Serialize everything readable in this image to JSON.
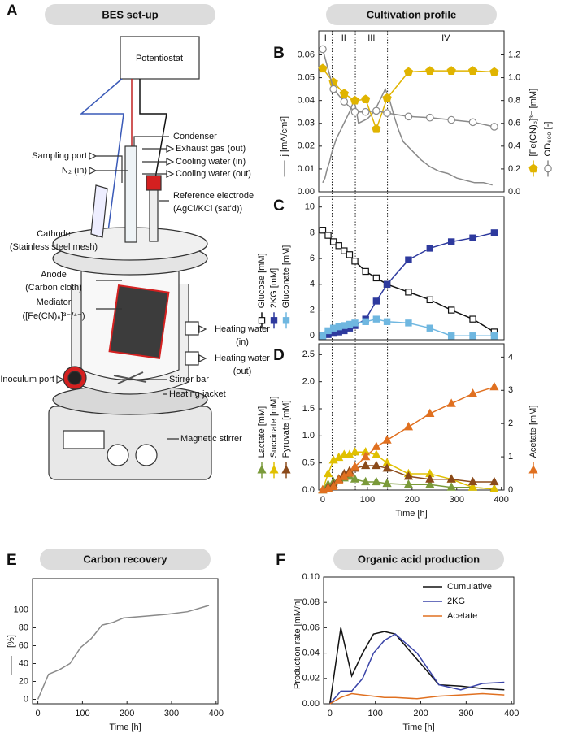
{
  "diagram": {
    "panel": "A",
    "title": "BES set-up",
    "potentiostat": "Potentiostat",
    "labels": [
      [
        "Condenser"
      ],
      [
        "Exhaust gas (out)"
      ],
      [
        "Cooling water (in)"
      ],
      [
        "Cooling water (out)"
      ],
      [
        "Sampling port"
      ],
      [
        "N₂ (in)"
      ],
      [
        "Reference electrode",
        "(AgCl/KCl (sat'd))"
      ],
      [
        "Cathode",
        "(Stainless steel mesh)"
      ],
      [
        "Anode",
        "(Carbon cloth)"
      ],
      [
        "Mediator",
        "([Fe(CN)₆]³⁻/⁴⁻)"
      ],
      [
        "Heating water",
        "(in)"
      ],
      [
        "Heating water",
        "(out)"
      ],
      [
        "Inoculum port"
      ],
      [
        "Stirrer bar"
      ],
      [
        "Heating jacket"
      ],
      [
        "Magnetic stirrer"
      ]
    ]
  },
  "chart_data": [
    {
      "type": "line",
      "panel": "B",
      "title": "Cultivation profile",
      "xlim": [
        -9,
        406
      ],
      "ylim": [
        0,
        0.0705
      ],
      "y2lim": [
        0,
        1.41
      ],
      "yticks": [
        {
          "value": 0,
          "label": "0.00"
        },
        0.01,
        0.02,
        0.03,
        0.04,
        0.05,
        0.06
      ],
      "y2ticks": [
        {
          "value": 0,
          "label": "0.0"
        },
        0.2,
        0.4,
        0.6,
        0.8,
        {
          "value": 1,
          "label": "1.0"
        },
        1.2
      ],
      "phase_labels": [
        "I",
        "II",
        "III",
        "IV"
      ],
      "phase_boundaries": [
        21,
        73,
        145
      ],
      "series": [
        {
          "name": "j [mA/cm²]",
          "color": "#8a8a8a",
          "x": [
            0,
            5,
            10,
            15,
            20,
            25,
            30,
            40,
            50,
            60,
            70,
            75,
            80,
            90,
            100,
            110,
            120,
            130,
            140,
            150,
            160,
            170,
            180,
            200,
            220,
            240,
            260,
            280,
            300,
            320,
            340,
            360,
            380
          ],
          "values": [
            0.004,
            0.006,
            0.01,
            0.013,
            0.017,
            0.02,
            0.023,
            0.027,
            0.031,
            0.035,
            0.04,
            0.036,
            0.03,
            0.031,
            0.032,
            0.034,
            0.037,
            0.041,
            0.045,
            0.04,
            0.033,
            0.027,
            0.022,
            0.018,
            0.014,
            0.011,
            0.009,
            0.008,
            0.006,
            0.005,
            0.004,
            0.004,
            0.003
          ]
        },
        {
          "name": "[Fe(CN)₆]³⁻ [mM]",
          "color": "#e0b400",
          "marker": "pentagon",
          "axis": "y2",
          "x": [
            0,
            24,
            48,
            72,
            96,
            120,
            144,
            192,
            240,
            288,
            336,
            384
          ],
          "values": [
            1.08,
            0.96,
            0.86,
            0.8,
            0.81,
            0.55,
            0.82,
            1.05,
            1.06,
            1.06,
            1.06,
            1.05
          ]
        },
        {
          "name": "OD₆₀₀ [-]",
          "color": "#8a8a8a",
          "marker": "circle",
          "marker_fill": "#ffffff",
          "axis": "y2",
          "x": [
            0,
            24,
            48,
            72,
            96,
            120,
            144,
            192,
            240,
            288,
            336,
            384
          ],
          "values": [
            1.25,
            0.9,
            0.79,
            0.7,
            0.7,
            0.71,
            0.69,
            0.66,
            0.65,
            0.63,
            0.61,
            0.57
          ]
        }
      ]
    },
    {
      "type": "line",
      "panel": "C",
      "xlim": [
        -9,
        406
      ],
      "ylim": [
        -0.3,
        10.8
      ],
      "yticks": [
        0,
        2,
        4,
        6,
        8,
        10
      ],
      "series": [
        {
          "name": "Glucose [mM]",
          "color": "#111111",
          "marker": "square",
          "marker_fill": "#ffffff",
          "x": [
            0,
            12,
            24,
            36,
            48,
            60,
            72,
            96,
            120,
            144,
            192,
            240,
            288,
            336,
            384
          ],
          "values": [
            8.2,
            7.8,
            7.3,
            7.0,
            6.6,
            6.3,
            5.8,
            5.0,
            4.5,
            4.0,
            3.4,
            2.8,
            2.0,
            1.3,
            0.3
          ]
        },
        {
          "name": "2KG [mM]",
          "color": "#2e3a9e",
          "marker": "square",
          "x": [
            0,
            12,
            24,
            36,
            48,
            60,
            72,
            96,
            120,
            144,
            192,
            240,
            288,
            336,
            384
          ],
          "values": [
            0,
            0.1,
            0.2,
            0.3,
            0.4,
            0.6,
            0.8,
            1.3,
            2.7,
            4.0,
            5.9,
            6.8,
            7.3,
            7.6,
            8.0
          ]
        },
        {
          "name": "Gluconate [mM]",
          "color": "#6fb7e0",
          "marker": "square",
          "x": [
            0,
            12,
            24,
            36,
            48,
            60,
            72,
            96,
            120,
            144,
            192,
            240,
            288,
            336,
            384
          ],
          "values": [
            0,
            0.4,
            0.6,
            0.7,
            0.8,
            0.9,
            1.0,
            1.1,
            1.3,
            1.1,
            1.0,
            0.6,
            0,
            0,
            0
          ]
        }
      ]
    },
    {
      "type": "line",
      "panel": "D",
      "xlim": [
        -9,
        406
      ],
      "ylim": [
        0,
        2.7
      ],
      "y2lim": [
        0,
        4.4
      ],
      "xlabel": "Time [h]",
      "xticks": [
        0,
        100,
        200,
        300,
        400
      ],
      "yticks": [
        {
          "value": 0,
          "label": "0.0"
        },
        0.5,
        {
          "value": 1,
          "label": "1.0"
        },
        1.5,
        {
          "value": 2,
          "label": "2.0"
        },
        2.5
      ],
      "y2ticks": [
        0,
        1,
        2,
        3,
        4
      ],
      "series": [
        {
          "name": "Lactate [mM]",
          "color": "#7a9a3a",
          "marker": "triangle",
          "x": [
            0,
            12,
            24,
            36,
            48,
            60,
            72,
            96,
            120,
            144,
            192,
            240,
            288,
            336,
            384
          ],
          "values": [
            0,
            0.1,
            0.15,
            0.2,
            0.22,
            0.25,
            0.2,
            0.15,
            0.15,
            0.12,
            0.1,
            0.1,
            0.05,
            0.05,
            0.02
          ]
        },
        {
          "name": "Succinate [mM]",
          "color": "#e0c000",
          "marker": "triangle",
          "x": [
            0,
            12,
            24,
            36,
            48,
            60,
            72,
            96,
            120,
            144,
            192,
            240,
            288,
            336,
            384
          ],
          "values": [
            0,
            0.3,
            0.55,
            0.6,
            0.65,
            0.65,
            0.7,
            0.7,
            0.65,
            0.5,
            0.3,
            0.3,
            0.2,
            0.05,
            0.02
          ]
        },
        {
          "name": "Pyruvate [mM]",
          "color": "#8b4a1a",
          "marker": "triangle",
          "x": [
            0,
            12,
            24,
            36,
            48,
            60,
            72,
            96,
            120,
            144,
            192,
            240,
            288,
            336,
            384
          ],
          "values": [
            0,
            0.05,
            0.1,
            0.2,
            0.3,
            0.35,
            0.4,
            0.45,
            0.45,
            0.4,
            0.25,
            0.2,
            0.2,
            0.15,
            0.15
          ]
        },
        {
          "name": "Acetate [mM]",
          "color": "#e07020",
          "marker": "triangle",
          "axis": "y2",
          "x": [
            0,
            12,
            24,
            36,
            48,
            60,
            72,
            96,
            120,
            144,
            192,
            240,
            288,
            336,
            384
          ],
          "values": [
            0,
            0.05,
            0.1,
            0.3,
            0.4,
            0.5,
            0.7,
            1.0,
            1.3,
            1.5,
            1.9,
            2.3,
            2.6,
            2.9,
            3.1
          ]
        }
      ]
    },
    {
      "type": "line",
      "panel": "E",
      "title": "Carbon recovery",
      "xlabel": "Time [h]",
      "ylabel": "[%]",
      "color": "#8a8a8a",
      "xlim": [
        -12,
        404
      ],
      "ylim": [
        -5,
        135
      ],
      "xticks": [
        0,
        100,
        200,
        300,
        400
      ],
      "yticks": [
        0,
        20,
        40,
        60,
        80,
        100
      ],
      "reference_line": 100,
      "x": [
        0,
        24,
        48,
        72,
        96,
        120,
        144,
        168,
        192,
        240,
        288,
        336,
        384
      ],
      "values": [
        0,
        28,
        33,
        40,
        58,
        68,
        83,
        86,
        91,
        93,
        95,
        98,
        105
      ]
    },
    {
      "type": "line",
      "panel": "F",
      "title": "Organic acid production",
      "xlabel": "Time [h]",
      "ylabel": "Production rate [mM/h]",
      "xlim": [
        -14,
        405
      ],
      "ylim": [
        0,
        0.1
      ],
      "xticks": [
        0,
        100,
        200,
        300,
        400
      ],
      "yticks": [
        {
          "value": 0,
          "label": "0.00"
        },
        0.02,
        0.04,
        0.06,
        0.08,
        {
          "value": 0.1,
          "label": "0.10"
        }
      ],
      "legend": "upper right",
      "x": [
        0,
        24,
        48,
        72,
        96,
        120,
        144,
        192,
        240,
        288,
        336,
        384
      ],
      "series": [
        {
          "name": "Cumulative",
          "color": "#111111",
          "values": [
            0,
            0.06,
            0.022,
            0.04,
            0.055,
            0.057,
            0.055,
            0.035,
            0.015,
            0.014,
            0.012,
            0.011
          ]
        },
        {
          "name": "2KG",
          "color": "#3a44a8",
          "values": [
            0,
            0.01,
            0.01,
            0.02,
            0.04,
            0.05,
            0.055,
            0.04,
            0.015,
            0.011,
            0.016,
            0.017
          ]
        },
        {
          "name": "Acetate",
          "color": "#e07020",
          "values": [
            0,
            0.005,
            0.008,
            0.007,
            0.006,
            0.005,
            0.005,
            0.004,
            0.006,
            0.007,
            0.008,
            0.007
          ]
        }
      ]
    }
  ]
}
